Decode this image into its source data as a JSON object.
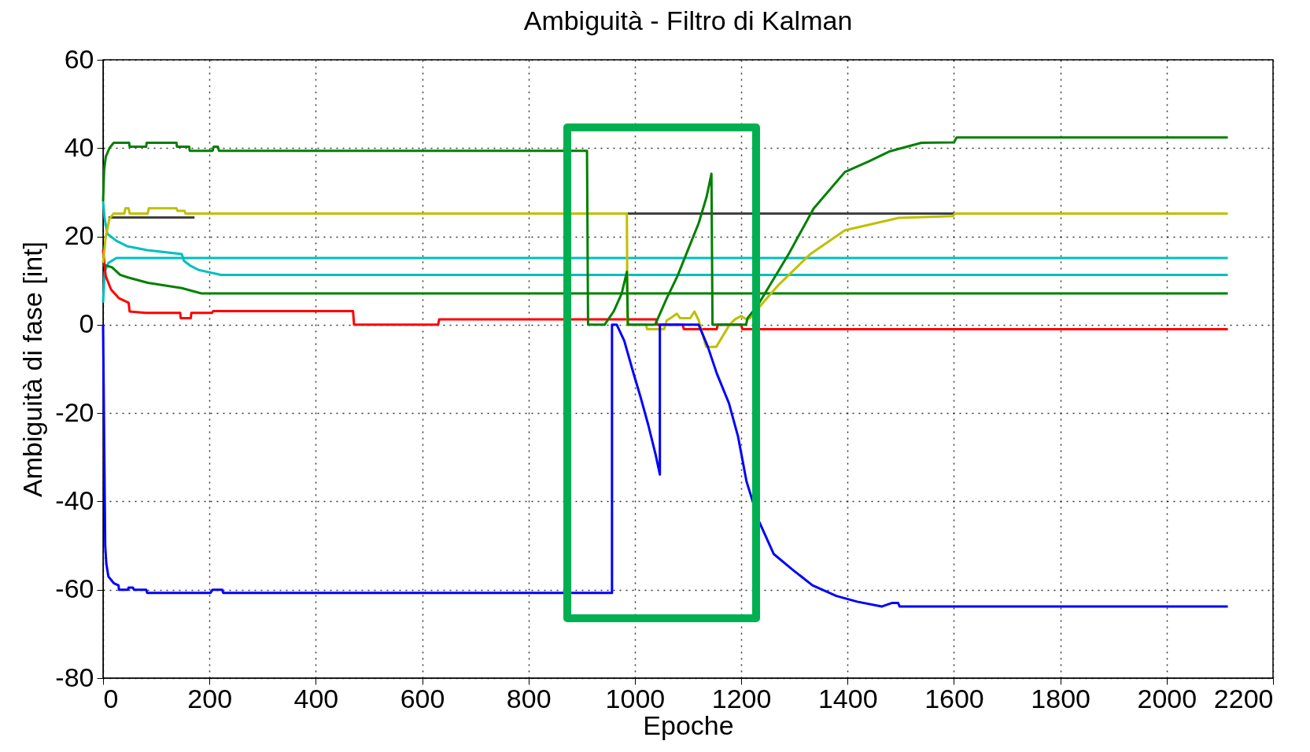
{
  "chart_data": {
    "type": "line",
    "title": "Ambiguità - Filtro di Kalman",
    "xlabel": "Epoche",
    "ylabel": "Ambiguità di fase [int]",
    "xlim": [
      0,
      2200
    ],
    "ylim": [
      -80,
      60
    ],
    "xticks": [
      0,
      200,
      400,
      600,
      800,
      1000,
      1200,
      1400,
      1600,
      1800,
      2000,
      2200
    ],
    "yticks": [
      -80,
      -60,
      -40,
      -20,
      0,
      20,
      40,
      60
    ],
    "grid": true,
    "series": [
      {
        "color": "#00bfbf",
        "x": [
          0,
          3,
          8,
          25,
          45,
          83,
          148,
          152,
          165,
          180,
          222,
          2115
        ],
        "values": [
          28,
          24,
          20.6,
          19,
          17.8,
          16.9,
          16,
          14.5,
          13.3,
          12.4,
          11.3,
          11.3
        ]
      },
      {
        "color": "#00bfbf",
        "x": [
          0,
          3,
          10,
          25,
          2115
        ],
        "values": [
          5,
          12,
          14,
          15.1,
          15.1
        ]
      },
      {
        "color": "#404040",
        "x": [
          10,
          172,
          500,
          986,
          1600
        ],
        "values": [
          24.3,
          24.3,
          null,
          25.2,
          25.2
        ]
      },
      {
        "color": "#008000",
        "x": [
          0,
          17,
          32,
          47,
          84,
          148,
          185,
          2115
        ],
        "values": [
          13.6,
          13,
          11.3,
          10.7,
          9.5,
          8.3,
          7.1,
          7.1
        ]
      },
      {
        "color": "#ff0000",
        "x": [
          0,
          5,
          15,
          30,
          48,
          50,
          80,
          145,
          146,
          165,
          166,
          205,
          207,
          470,
          472,
          630,
          632,
          1040,
          1042,
          1090,
          1092,
          1154,
          1156,
          1200,
          1202,
          2115
        ],
        "values": [
          17,
          11,
          8,
          6,
          5,
          3,
          2.7,
          2.7,
          1.5,
          1.5,
          2.7,
          2.7,
          3.1,
          3.1,
          0,
          0,
          1.2,
          1.2,
          0,
          0,
          -1,
          -1,
          0,
          0,
          -1,
          -1
        ]
      },
      {
        "color": "#bfbf00",
        "x": [
          0,
          5,
          12,
          20,
          40,
          42,
          48,
          50,
          84,
          86,
          138,
          140,
          153,
          155,
          985,
          986,
          1021,
          1023,
          1055,
          1060,
          1067,
          1079,
          1085,
          1104,
          1112,
          1120,
          1134,
          1153,
          1178,
          1188,
          1200,
          1210,
          1217,
          1231,
          1270,
          1329,
          1395,
          1496,
          1598,
          1602,
          2115
        ],
        "values": [
          14,
          20,
          24,
          25.2,
          25.2,
          26.4,
          26.4,
          25.2,
          25.2,
          26.4,
          26.4,
          25.8,
          25.8,
          25.2,
          25.2,
          0,
          0,
          -1,
          -1,
          1,
          1.5,
          2.5,
          1.5,
          1.5,
          3,
          1,
          -5,
          -5,
          0,
          1.2,
          2,
          1.2,
          1.5,
          3.6,
          9,
          15.9,
          21.4,
          24.2,
          24.6,
          25.2,
          25.2
        ]
      },
      {
        "color": "#008000",
        "x": [
          0,
          2,
          5,
          12,
          20,
          49,
          50,
          81,
          82,
          138,
          139,
          162,
          163,
          206,
          208,
          216,
          218,
          910,
          912,
          943,
          960,
          975,
          985,
          987,
          1038,
          1060,
          1080,
          1100,
          1120,
          1135,
          1144,
          1146,
          1209,
          1212,
          1231,
          1290,
          1336,
          1395,
          1440,
          1480,
          1539,
          1600,
          1605,
          2115
        ],
        "values": [
          28,
          35,
          38,
          40,
          41.2,
          41.2,
          40.3,
          40.3,
          41.2,
          41.2,
          40.3,
          40.3,
          39.4,
          39.4,
          40.3,
          40.3,
          39.4,
          39.4,
          0,
          0,
          3,
          7,
          12,
          0,
          0,
          6,
          11,
          17,
          23,
          29,
          34.2,
          0,
          0,
          1.5,
          4.4,
          16.2,
          26.3,
          34.6,
          37,
          39.3,
          41.2,
          41.3,
          42.4,
          42.4
        ]
      },
      {
        "color": "#0000ff",
        "x": [
          0,
          2,
          4,
          6,
          10,
          20,
          29,
          30,
          47,
          48,
          56,
          58,
          81,
          83,
          202,
          206,
          224,
          226,
          957,
          957,
          966,
          980,
          996,
          1011,
          1025,
          1039,
          1047,
          1047,
          1120,
          1137,
          1154,
          1177,
          1194,
          1210,
          1233,
          1261,
          1295,
          1334,
          1379,
          1418,
          1464,
          1483,
          1495,
          1498,
          2115
        ],
        "values": [
          0,
          -25,
          -50,
          -54,
          -57,
          -58.5,
          -59,
          -60,
          -60,
          -59.5,
          -59.5,
          -60,
          -60,
          -60.7,
          -60.7,
          -60,
          -60,
          -60.7,
          -60.7,
          0,
          0,
          -3.6,
          -10.4,
          -16.5,
          -22.6,
          -29.4,
          -33.9,
          0,
          0,
          -4.9,
          -11,
          -17.8,
          -25.3,
          -35.5,
          -44.4,
          -51.9,
          -55.3,
          -59,
          -61.4,
          -62.7,
          -63.8,
          -63,
          -63,
          -63.8,
          -63.8
        ]
      }
    ]
  }
}
